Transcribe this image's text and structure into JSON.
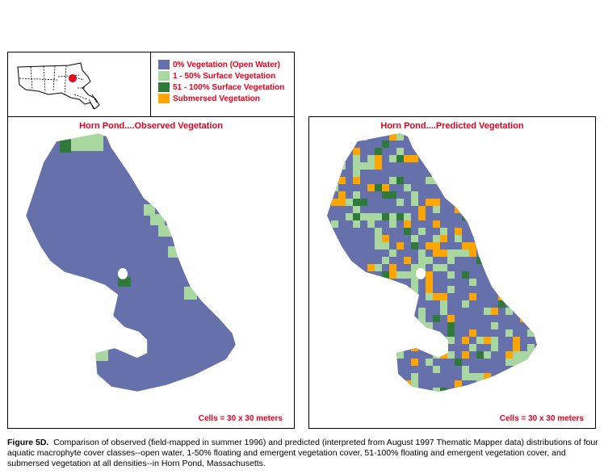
{
  "legend": {
    "items": [
      {
        "label": "0% Vegetation (Open Water)",
        "color": "#6670aa"
      },
      {
        "label": "1 - 50% Surface Vegetation",
        "color": "#a8d8a0"
      },
      {
        "label": "51 - 100% Surface Vegetation",
        "color": "#2f7a3a"
      },
      {
        "label": "Submersed Vegetation",
        "color": "#ffa500"
      }
    ]
  },
  "panels": {
    "observed": {
      "title": "Horn Pond....Observed Vegetation",
      "cells_note": "Cells = 30 x 30 meters"
    },
    "predicted": {
      "title": "Horn Pond....Predicted Vegetation",
      "cells_note": "Cells = 30 x 30 meters"
    }
  },
  "caption": {
    "figure_label": "Figure 5D.",
    "text": "Comparison of observed (field-mapped in summer 1996) and predicted (interpreted from August 1997 Thematic Mapper data) distributions of four aquatic macrophyte cover classes--open water, 1-50% floating and emergent vegetation cover, 51-100% floating and emergent vegetation cover, and submersed vegetation at all densities--in Horn Pond, Massachusetts."
  },
  "colors": {
    "open_water": "#6670aa",
    "low_veg": "#a8d8a0",
    "high_veg": "#2f7a3a",
    "submersed": "#ffa500",
    "title_red": "#e8001c"
  }
}
